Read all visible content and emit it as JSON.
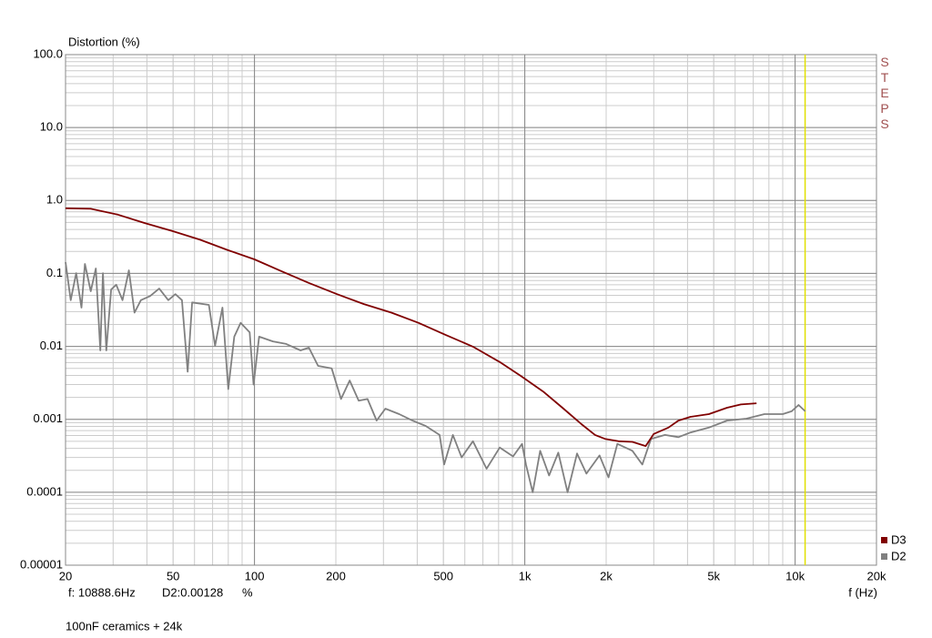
{
  "chart_data": {
    "type": "line",
    "log_x": true,
    "log_y": true,
    "grid": true,
    "minor_grid": true,
    "y_axis_label": "Distortion (%)",
    "x_axis_label": "f (Hz)",
    "side_label": "STEPS",
    "note": "100nF ceramics + 24k",
    "legend_position": "bottom-right",
    "cursor": {
      "frequency_label": "f: 10888.6Hz",
      "frequency": 10888.6,
      "readout": "D2:0.00128",
      "unit": "%",
      "color": "#e0e000"
    },
    "xlim": [
      20,
      20000
    ],
    "ylim": [
      1e-05,
      100
    ],
    "xticks": [
      20,
      50,
      100,
      200,
      500,
      {
        "value": 1000,
        "label": "1k"
      },
      {
        "value": 2000,
        "label": "2k"
      },
      {
        "value": 5000,
        "label": "5k"
      },
      {
        "value": 10000,
        "label": "10k"
      },
      {
        "value": 20000,
        "label": "20k"
      }
    ],
    "yticks": [
      {
        "value": 100,
        "label": "100.0"
      },
      {
        "value": 10,
        "label": "10.0"
      },
      {
        "value": 1,
        "label": "1.0"
      },
      0.1,
      0.01,
      0.001,
      0.0001,
      1e-05
    ],
    "series": [
      {
        "name": "D3",
        "color": "#800000",
        "x": [
          20,
          24.8,
          31.2,
          39.3,
          49.9,
          62.9,
          79.4,
          100,
          126,
          159,
          202,
          254,
          321,
          404,
          509,
          643,
          808,
          969,
          1170,
          1390,
          1620,
          1820,
          1980,
          2220,
          2500,
          2800,
          3000,
          3400,
          3700,
          4100,
          4800,
          5600,
          6300,
          7200
        ],
        "values": [
          0.78,
          0.77,
          0.64,
          0.49,
          0.38,
          0.29,
          0.21,
          0.156,
          0.107,
          0.074,
          0.052,
          0.038,
          0.029,
          0.021,
          0.0144,
          0.0099,
          0.0061,
          0.0039,
          0.0024,
          0.0014,
          0.00086,
          0.00061,
          0.00054,
          0.0005,
          0.00049,
          0.00043,
          0.00063,
          0.00077,
          0.00096,
          0.00108,
          0.00118,
          0.00144,
          0.0016,
          0.00166
        ]
      },
      {
        "name": "D2",
        "color": "#808080",
        "x": [
          20,
          20.9,
          21.9,
          22.9,
          23.6,
          24.8,
          25.9,
          26.9,
          27.5,
          28.3,
          29.5,
          30.8,
          32.5,
          34.3,
          36,
          38,
          41.1,
          44.4,
          48,
          51,
          53.9,
          56.6,
          58.8,
          67.8,
          71.5,
          76.1,
          80,
          84.2,
          88.9,
          96,
          99.2,
          104,
          117,
          131,
          148,
          159,
          172,
          193,
          209,
          225,
          243,
          262,
          283,
          305,
          343,
          384,
          430,
          484,
          503,
          542,
          584,
          643,
          722,
          808,
          905,
          977,
          1010,
          1070,
          1140,
          1230,
          1330,
          1440,
          1560,
          1690,
          1890,
          2040,
          2200,
          2500,
          2720,
          2930,
          3300,
          3700,
          4100,
          4800,
          5600,
          6600,
          7700,
          9000,
          9700,
          10300,
          10900
        ],
        "values": [
          0.143,
          0.043,
          0.101,
          0.034,
          0.135,
          0.057,
          0.117,
          0.0088,
          0.101,
          0.0088,
          0.06,
          0.07,
          0.043,
          0.11,
          0.029,
          0.043,
          0.049,
          0.062,
          0.043,
          0.052,
          0.043,
          0.0045,
          0.04,
          0.037,
          0.0102,
          0.034,
          0.0026,
          0.0136,
          0.021,
          0.0156,
          0.003,
          0.0136,
          0.0117,
          0.0108,
          0.0088,
          0.0096,
          0.0054,
          0.005,
          0.0019,
          0.0034,
          0.0018,
          0.0019,
          0.00096,
          0.0014,
          0.00118,
          0.00096,
          0.00081,
          0.00061,
          0.00024,
          0.00061,
          0.0003,
          0.0005,
          0.00021,
          0.00041,
          0.00031,
          0.00046,
          0.00024,
          0.0001,
          0.00037,
          0.00017,
          0.00035,
          0.0001,
          0.00034,
          0.00018,
          0.00032,
          0.00016,
          0.00046,
          0.00037,
          0.00024,
          0.00054,
          0.00061,
          0.00057,
          0.00066,
          0.00077,
          0.00096,
          0.00102,
          0.00118,
          0.00118,
          0.00129,
          0.00157,
          0.00129
        ]
      }
    ]
  }
}
